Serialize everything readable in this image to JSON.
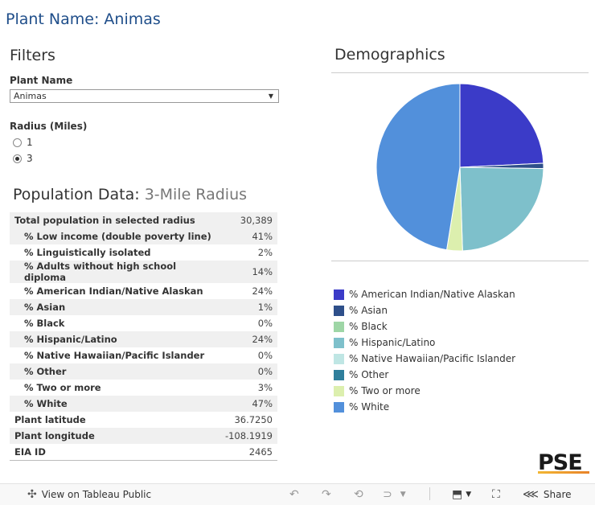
{
  "page": {
    "title": "Plant Name: Animas"
  },
  "filters": {
    "heading": "Filters",
    "plant_name_label": "Plant Name",
    "plant_name_value": "Animas",
    "radius_label": "Radius (Miles)",
    "radius_options": [
      "1",
      "3"
    ],
    "radius_selected": "3"
  },
  "population": {
    "heading": "Population Data:",
    "subheading": "3-Mile Radius",
    "rows": [
      {
        "label": "Total population in selected radius",
        "value": "30,389"
      },
      {
        "label": "% Low income (double poverty line)",
        "value": "41%"
      },
      {
        "label": "% Linguistically isolated",
        "value": "2%"
      },
      {
        "label": "% Adults without high school diploma",
        "value": "14%"
      },
      {
        "label": "% American Indian/Native Alaskan",
        "value": "24%"
      },
      {
        "label": "% Asian",
        "value": "1%"
      },
      {
        "label": "% Black",
        "value": "0%"
      },
      {
        "label": "% Hispanic/Latino",
        "value": "24%"
      },
      {
        "label": "% Native Hawaiian/Pacific Islander",
        "value": "0%"
      },
      {
        "label": "% Other",
        "value": "0%"
      },
      {
        "label": "% Two or more",
        "value": "3%"
      },
      {
        "label": "% White",
        "value": "47%"
      },
      {
        "label": "Plant latitude",
        "value": "36.7250"
      },
      {
        "label": "Plant longitude",
        "value": "-108.1919"
      },
      {
        "label": "EIA ID",
        "value": "2465"
      }
    ]
  },
  "demographics": {
    "heading": "Demographics",
    "legend": [
      {
        "label": "% American Indian/Native Alaskan",
        "color": "#3b3bc8"
      },
      {
        "label": "% Asian",
        "color": "#2e4f8a"
      },
      {
        "label": "% Black",
        "color": "#9ed6a6"
      },
      {
        "label": "% Hispanic/Latino",
        "color": "#7ec0cb"
      },
      {
        "label": "% Native Hawaiian/Pacific Islander",
        "color": "#bfe6e4"
      },
      {
        "label": "% Other",
        "color": "#2f7f9c"
      },
      {
        "label": "% Two or more",
        "color": "#dcefae"
      },
      {
        "label": "% White",
        "color": "#5290db"
      }
    ]
  },
  "chart_data": {
    "type": "pie",
    "categories": [
      "% American Indian/Native Alaskan",
      "% Asian",
      "% Black",
      "% Hispanic/Latino",
      "% Native Hawaiian/Pacific Islander",
      "% Other",
      "% Two or more",
      "% White"
    ],
    "values": [
      24,
      1,
      0,
      24,
      0,
      0,
      3,
      47
    ],
    "colors": [
      "#3b3bc8",
      "#2e4f8a",
      "#9ed6a6",
      "#7ec0cb",
      "#bfe6e4",
      "#2f7f9c",
      "#dcefae",
      "#5290db"
    ]
  },
  "brand": {
    "logo_text": "PSE"
  },
  "toolbar": {
    "view_label": "View on Tableau Public",
    "share_label": "Share"
  }
}
